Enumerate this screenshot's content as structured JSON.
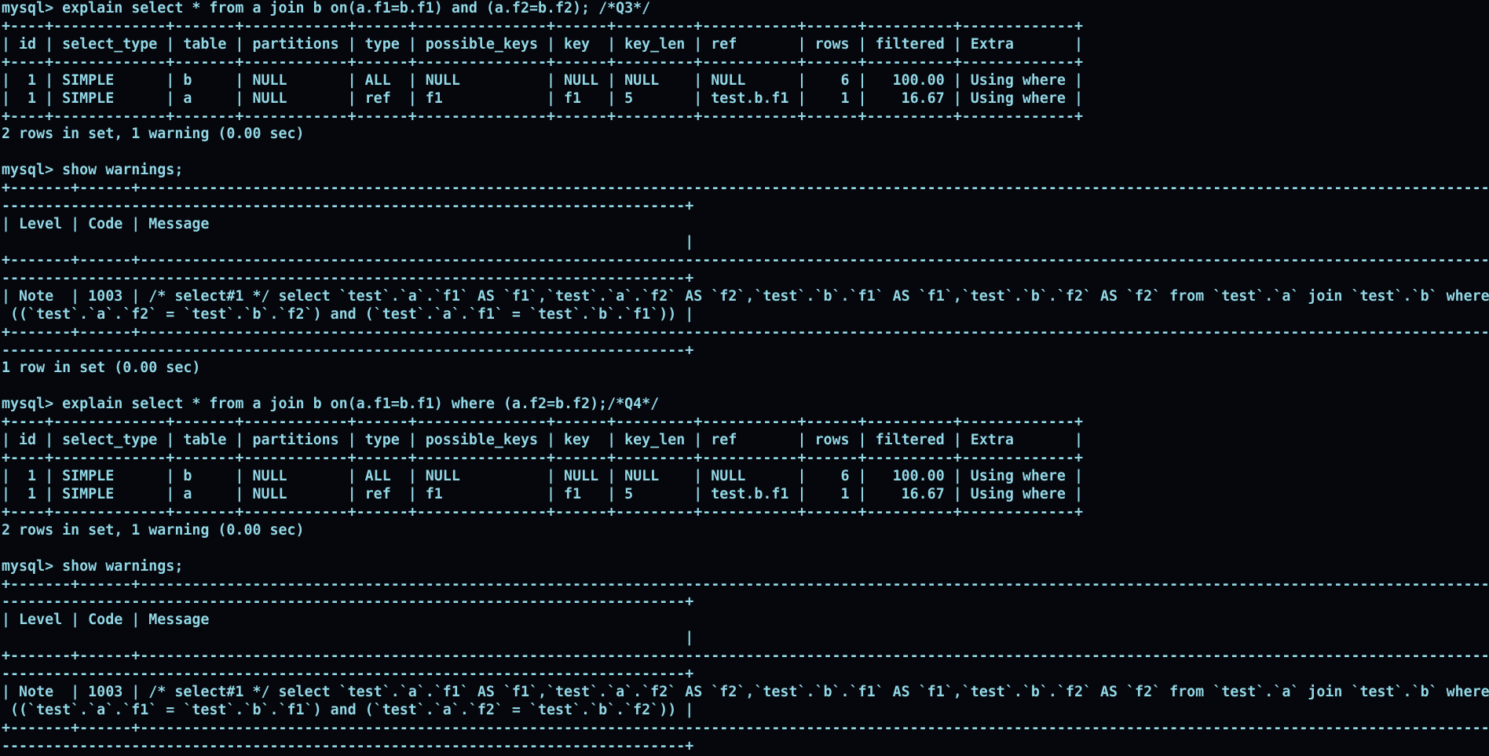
{
  "terminal": {
    "columns": 172,
    "prompt": "mysql>",
    "colors": {
      "background": "#05070c",
      "foreground": "#92d7e6"
    }
  },
  "session": {
    "blocks": [
      {
        "type": "command",
        "text": "explain select * from a join b on(a.f1=b.f1) and (a.f2=b.f2); /*Q3*/"
      },
      {
        "type": "table",
        "header": [
          "id",
          "select_type",
          "table",
          "partitions",
          "type",
          "possible_keys",
          "key",
          "key_len",
          "ref",
          "rows",
          "filtered",
          "Extra"
        ],
        "align": [
          "r",
          "l",
          "l",
          "l",
          "l",
          "l",
          "l",
          "l",
          "l",
          "r",
          "r",
          "l"
        ],
        "rows": [
          [
            "1",
            "SIMPLE",
            "b",
            "NULL",
            "ALL",
            "NULL",
            "NULL",
            "NULL",
            "NULL",
            "6",
            "100.00",
            "Using where"
          ],
          [
            "1",
            "SIMPLE",
            "a",
            "NULL",
            "ref",
            "f1",
            "f1",
            "5",
            "test.b.f1",
            "1",
            "16.67",
            "Using where"
          ]
        ]
      },
      {
        "type": "status",
        "text": "2 rows in set, 1 warning (0.00 sec)"
      },
      {
        "type": "blank"
      },
      {
        "type": "command",
        "text": "show warnings;"
      },
      {
        "type": "table",
        "header": [
          "Level",
          "Code",
          "Message"
        ],
        "align": [
          "l",
          "r",
          "l"
        ],
        "rows": [
          [
            "Note",
            "1003",
            "/* select#1 */ select `test`.`a`.`f1` AS `f1`,`test`.`a`.`f2` AS `f2`,`test`.`b`.`f1` AS `f1`,`test`.`b`.`f2` AS `f2` from `test`.`a` join `test`.`b` where ((`test`.`a`.`f2` = `test`.`b`.`f2`) and (`test`.`a`.`f1` = `test`.`b`.`f1`))"
          ]
        ]
      },
      {
        "type": "status",
        "text": "1 row in set (0.00 sec)"
      },
      {
        "type": "blank"
      },
      {
        "type": "command",
        "text": "explain select * from a join b on(a.f1=b.f1) where (a.f2=b.f2);/*Q4*/"
      },
      {
        "type": "table",
        "header": [
          "id",
          "select_type",
          "table",
          "partitions",
          "type",
          "possible_keys",
          "key",
          "key_len",
          "ref",
          "rows",
          "filtered",
          "Extra"
        ],
        "align": [
          "r",
          "l",
          "l",
          "l",
          "l",
          "l",
          "l",
          "l",
          "l",
          "r",
          "r",
          "l"
        ],
        "rows": [
          [
            "1",
            "SIMPLE",
            "b",
            "NULL",
            "ALL",
            "NULL",
            "NULL",
            "NULL",
            "NULL",
            "6",
            "100.00",
            "Using where"
          ],
          [
            "1",
            "SIMPLE",
            "a",
            "NULL",
            "ref",
            "f1",
            "f1",
            "5",
            "test.b.f1",
            "1",
            "16.67",
            "Using where"
          ]
        ]
      },
      {
        "type": "status",
        "text": "2 rows in set, 1 warning (0.00 sec)"
      },
      {
        "type": "blank"
      },
      {
        "type": "command",
        "text": "show warnings;"
      },
      {
        "type": "table",
        "header": [
          "Level",
          "Code",
          "Message"
        ],
        "align": [
          "l",
          "r",
          "l"
        ],
        "rows": [
          [
            "Note",
            "1003",
            "/* select#1 */ select `test`.`a`.`f1` AS `f1`,`test`.`a`.`f2` AS `f2`,`test`.`b`.`f1` AS `f1`,`test`.`b`.`f2` AS `f2` from `test`.`a` join `test`.`b` where ((`test`.`a`.`f1` = `test`.`b`.`f1`) and (`test`.`a`.`f2` = `test`.`b`.`f2`))"
          ]
        ]
      }
    ]
  }
}
